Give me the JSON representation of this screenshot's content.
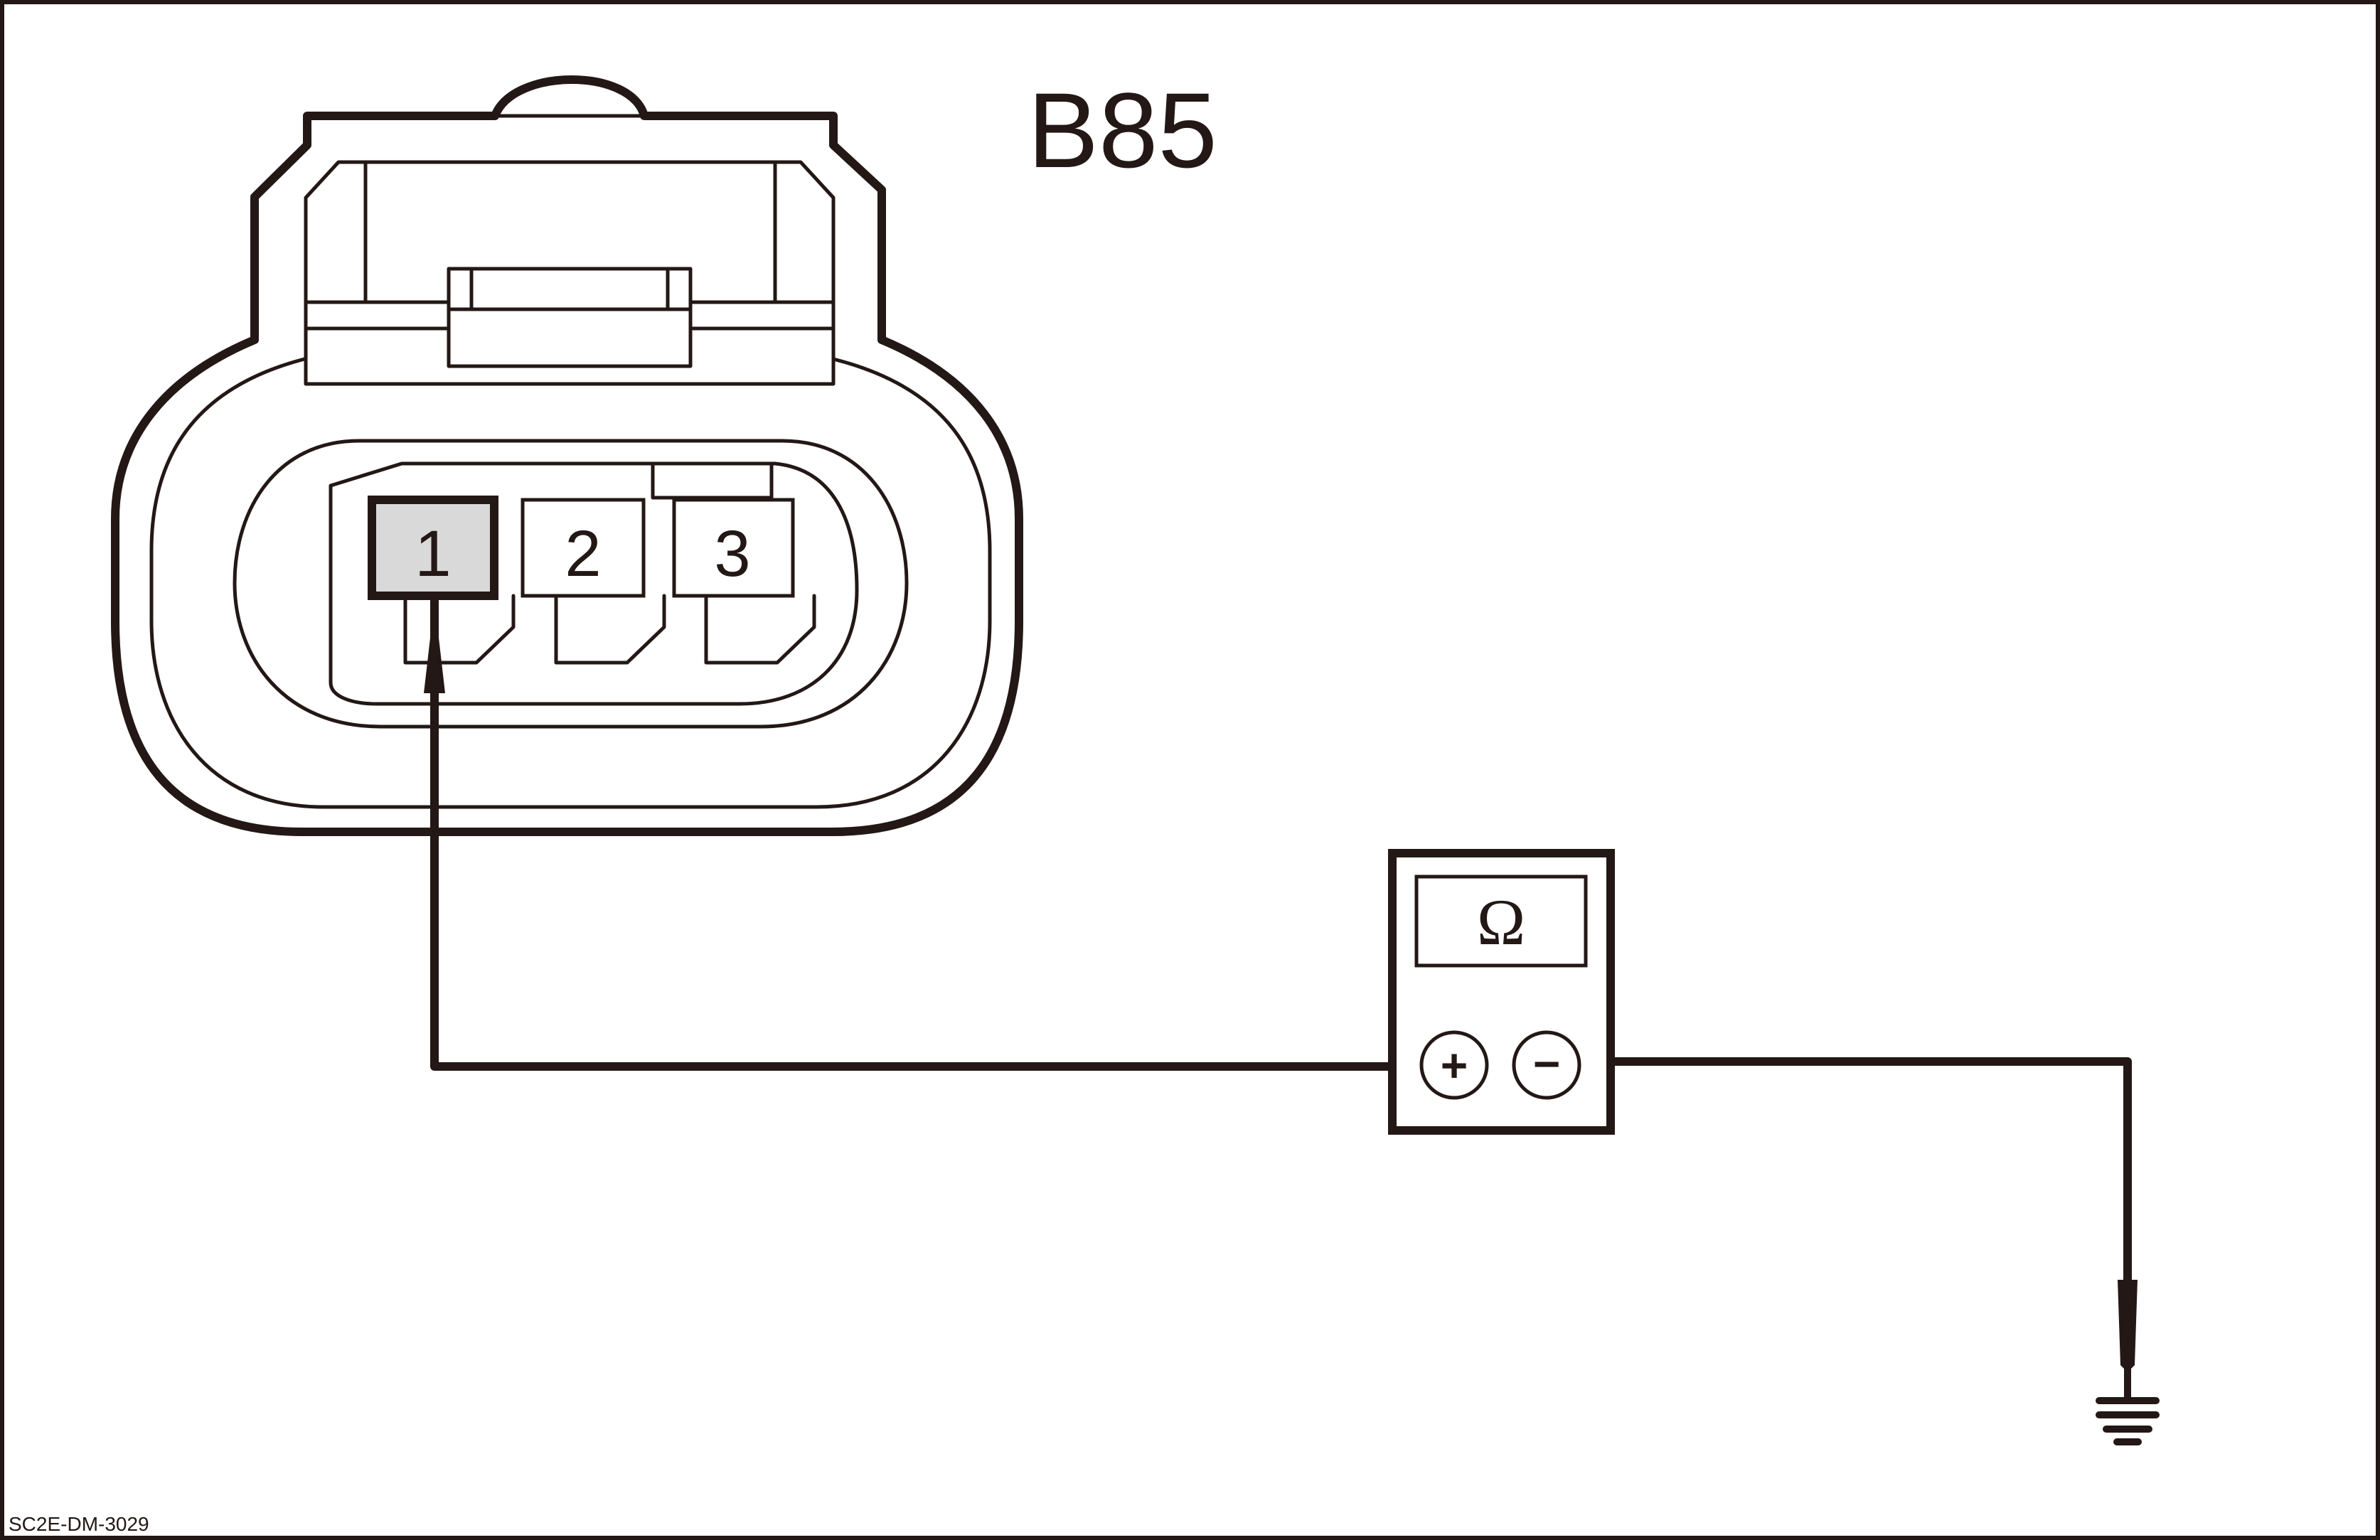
{
  "diagram": {
    "connector_label": "B85",
    "pins": [
      {
        "number": "1",
        "highlighted": true
      },
      {
        "number": "2",
        "highlighted": false
      },
      {
        "number": "3",
        "highlighted": false
      }
    ],
    "meter": {
      "display_symbol": "Ω",
      "plus_symbol": "+",
      "minus_symbol": "−"
    },
    "figure_code": "SC2E-DM-3029",
    "colors": {
      "line": "#231815",
      "highlight_fill": "#d9d9d9",
      "background": "#ffffff"
    }
  }
}
